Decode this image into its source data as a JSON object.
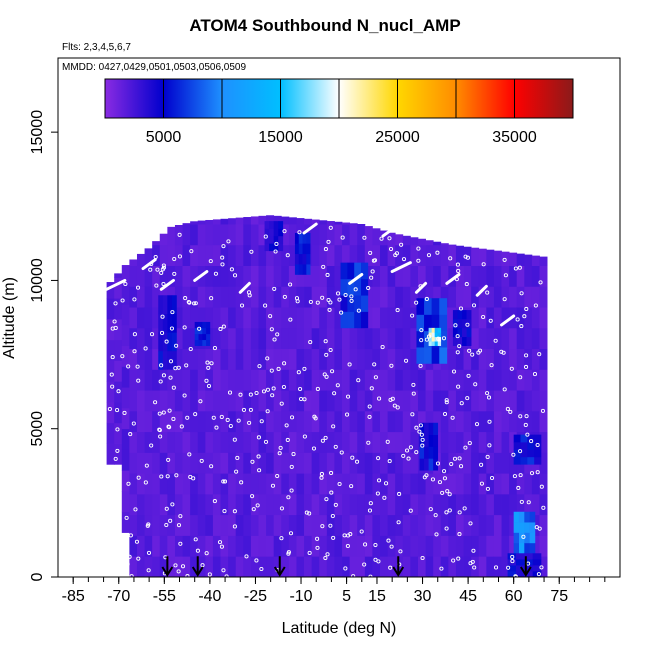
{
  "page": {
    "title": "ATOM4 Southbound N_nucl_AMP",
    "flights_label": "Flts: 2,3,4,5,6,7",
    "mmdd_label": "MMDD: 0427,0429,0501,0503,0506,0509"
  },
  "chart_data": {
    "type": "heatmap",
    "title": "ATOM4 Southbound N_nucl_AMP",
    "xlabel": "Latitude (deg N)",
    "ylabel": "Altitude (m)",
    "xlim": [
      -90,
      95
    ],
    "ylim": [
      0,
      17500
    ],
    "xticks": [
      -85,
      -70,
      -55,
      -40,
      -25,
      -10,
      5,
      15,
      30,
      45,
      60,
      75
    ],
    "xtick_labels": [
      "-85",
      "-70",
      "-55",
      "-40",
      "-25",
      "-10",
      "5",
      "15",
      "30",
      "45",
      "60",
      "75"
    ],
    "yticks": [
      0,
      5000,
      10000,
      15000
    ],
    "ytick_labels": [
      "0",
      "5000",
      "10000",
      "15000"
    ],
    "colorbar": {
      "range": [
        0,
        40000
      ],
      "ticks": [
        5000,
        15000,
        25000,
        35000
      ],
      "tick_labels": [
        "5000",
        "15000",
        "25000",
        "35000"
      ],
      "colors": [
        "#8a2be2",
        "#0000cd",
        "#1e90ff",
        "#00bfff",
        "#ffffff",
        "#ffd700",
        "#ff8c00",
        "#ff0000",
        "#8b1a1a"
      ]
    },
    "background_value_color": "#8a2be2",
    "data_extent": {
      "lat_range": [
        -74,
        71
      ],
      "top_altitude_profile": [
        {
          "lat": -74,
          "alt": 9800
        },
        {
          "lat": -68,
          "alt": 10500
        },
        {
          "lat": -60,
          "alt": 11100
        },
        {
          "lat": -53,
          "alt": 11800
        },
        {
          "lat": -45,
          "alt": 12000
        },
        {
          "lat": -20,
          "alt": 12200
        },
        {
          "lat": 10,
          "alt": 11900
        },
        {
          "lat": 20,
          "alt": 11600
        },
        {
          "lat": 30,
          "alt": 11400
        },
        {
          "lat": 40,
          "alt": 11200
        },
        {
          "lat": 70,
          "alt": 10800
        }
      ]
    },
    "enhanced_regions": [
      {
        "lat": [
          -57,
          -51
        ],
        "alt": [
          7000,
          9500
        ],
        "value": 6000
      },
      {
        "lat": [
          -45,
          -40
        ],
        "alt": [
          7800,
          8600
        ],
        "value": 7000
      },
      {
        "lat": [
          -22,
          -16
        ],
        "alt": [
          11000,
          12000
        ],
        "value": 5500
      },
      {
        "lat": [
          -12,
          -7
        ],
        "alt": [
          10200,
          11600
        ],
        "value": 7000
      },
      {
        "lat": [
          3,
          12
        ],
        "alt": [
          8400,
          10600
        ],
        "value": 8000
      },
      {
        "lat": [
          28,
          38
        ],
        "alt": [
          7200,
          9400
        ],
        "value": 9000
      },
      {
        "lat": [
          32,
          36
        ],
        "alt": [
          7800,
          8400
        ],
        "value": 22000
      },
      {
        "lat": [
          40,
          46
        ],
        "alt": [
          7800,
          9000
        ],
        "value": 6000
      },
      {
        "lat": [
          29,
          35
        ],
        "alt": [
          3600,
          5200
        ],
        "value": 7000
      },
      {
        "lat": [
          60,
          69
        ],
        "alt": [
          3800,
          4800
        ],
        "value": 7000
      },
      {
        "lat": [
          60,
          67
        ],
        "alt": [
          800,
          2200
        ],
        "value": 12000
      },
      {
        "lat": [
          58,
          69
        ],
        "alt": [
          0,
          800
        ],
        "value": 6000
      }
    ],
    "flight_arrows_lat": [
      -54,
      -44,
      -17,
      22,
      64
    ]
  }
}
